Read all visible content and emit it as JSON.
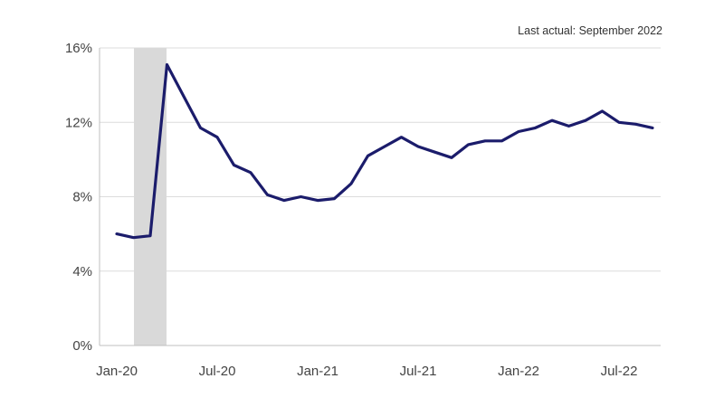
{
  "chart_data": {
    "type": "line",
    "annotation": "Last actual: September 2022",
    "x_tick_labels": [
      "Jan-20",
      "Jul-20",
      "Jan-21",
      "Jul-21",
      "Jan-22",
      "Jul-22"
    ],
    "y_tick_labels": [
      "0%",
      "4%",
      "8%",
      "12%",
      "16%"
    ],
    "y_ticks": [
      0,
      4,
      8,
      12,
      16
    ],
    "ylim": [
      0,
      16
    ],
    "x": [
      "2020-01",
      "2020-02",
      "2020-03",
      "2020-04",
      "2020-05",
      "2020-06",
      "2020-07",
      "2020-08",
      "2020-09",
      "2020-10",
      "2020-11",
      "2020-12",
      "2021-01",
      "2021-02",
      "2021-03",
      "2021-04",
      "2021-05",
      "2021-06",
      "2021-07",
      "2021-08",
      "2021-09",
      "2021-10",
      "2021-11",
      "2021-12",
      "2022-01",
      "2022-02",
      "2022-03",
      "2022-04",
      "2022-05",
      "2022-06",
      "2022-07",
      "2022-08",
      "2022-09"
    ],
    "series": [
      {
        "values": [
          6.0,
          5.8,
          5.9,
          15.1,
          13.4,
          11.7,
          11.2,
          9.7,
          9.3,
          8.1,
          7.8,
          8.0,
          7.8,
          7.9,
          8.7,
          10.2,
          10.7,
          11.2,
          10.7,
          10.4,
          10.1,
          10.8,
          11.0,
          11.0,
          11.5,
          11.7,
          12.1,
          11.8,
          12.1,
          12.6,
          12.0,
          11.9,
          11.7
        ],
        "color": "#1b1c6b"
      }
    ],
    "shaded_region": {
      "from": "2020-02",
      "to": "2020-04",
      "color": "#d9d9d9"
    },
    "grid": true
  }
}
